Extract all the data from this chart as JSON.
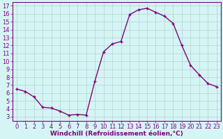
{
  "x": [
    0,
    1,
    2,
    3,
    4,
    5,
    6,
    7,
    8,
    9,
    10,
    11,
    12,
    13,
    14,
    15,
    16,
    17,
    18,
    19,
    20,
    21,
    22,
    23
  ],
  "y": [
    6.5,
    6.2,
    5.5,
    4.2,
    4.1,
    3.7,
    3.2,
    3.3,
    3.2,
    7.5,
    11.2,
    12.2,
    12.5,
    15.9,
    16.5,
    16.7,
    16.2,
    15.7,
    14.8,
    12.0,
    9.5,
    8.3,
    7.2,
    6.8
  ],
  "line_color": "#800080",
  "marker": "+",
  "markersize": 3,
  "markeredgewidth": 1.0,
  "linewidth": 1.0,
  "linestyle": "-",
  "background_color": "#d5f5f5",
  "grid_color": "#b8d8d8",
  "xlabel": "Windchill (Refroidissement éolien,°C)",
  "xlabel_fontsize": 6.5,
  "tick_fontsize": 6,
  "ylim": [
    2.5,
    17.5
  ],
  "xlim": [
    -0.5,
    23.5
  ],
  "yticks": [
    3,
    4,
    5,
    6,
    7,
    8,
    9,
    10,
    11,
    12,
    13,
    14,
    15,
    16,
    17
  ],
  "xticks": [
    0,
    1,
    2,
    3,
    4,
    5,
    6,
    7,
    8,
    9,
    10,
    11,
    12,
    13,
    14,
    15,
    16,
    17,
    18,
    19,
    20,
    21,
    22,
    23
  ]
}
